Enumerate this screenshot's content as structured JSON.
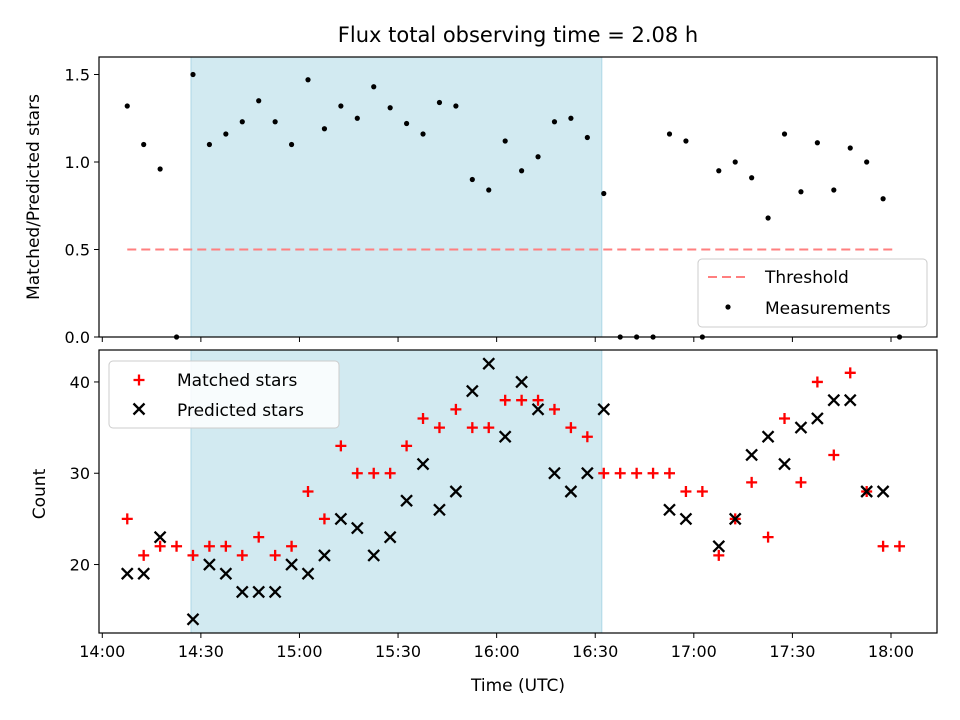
{
  "chart_data": [
    {
      "type": "scatter",
      "panel": "top",
      "title": "Flux total observing time = 2.08 h",
      "ylabel": "Matched/Predicted stars",
      "xlabel": "",
      "xlim": [
        -5,
        1270
      ],
      "ylim": [
        0,
        1.6
      ],
      "yticks": [
        0.0,
        0.5,
        1.0,
        1.5
      ],
      "ytick_labels": [
        "0.0",
        "0.5",
        "1.0",
        "1.5"
      ],
      "xticks": [
        0,
        150,
        300,
        450,
        600,
        750,
        900,
        1050,
        1200
      ],
      "shaded_region": {
        "start": 135,
        "end": 760,
        "color": "#add8e6"
      },
      "legend": {
        "location": "bottom-right",
        "entries": [
          "Threshold",
          "Measurements"
        ]
      },
      "series": [
        {
          "name": "Threshold",
          "style": "dashed-line",
          "color": "#ff7f7f",
          "x": [
            38,
            1202
          ],
          "y": [
            0.5,
            0.5
          ]
        },
        {
          "name": "Measurements",
          "style": "dot",
          "color": "#000000",
          "x": [
            38,
            63,
            88,
            113,
            138,
            163,
            188,
            213,
            238,
            263,
            288,
            313,
            338,
            363,
            388,
            413,
            438,
            463,
            488,
            513,
            538,
            563,
            588,
            613,
            638,
            663,
            688,
            713,
            738,
            763,
            788,
            813,
            838,
            863,
            888,
            913,
            938,
            963,
            988,
            1013,
            1038,
            1063,
            1088,
            1113,
            1138,
            1163,
            1188,
            1213
          ],
          "y": [
            1.32,
            1.1,
            0.96,
            0.0,
            1.5,
            1.1,
            1.16,
            1.23,
            1.35,
            1.23,
            1.1,
            1.47,
            1.19,
            1.32,
            1.25,
            1.43,
            1.31,
            1.22,
            1.16,
            1.34,
            1.32,
            0.9,
            0.84,
            1.12,
            0.95,
            1.03,
            1.23,
            1.25,
            1.14,
            0.82,
            0.0,
            0.0,
            0.0,
            1.16,
            1.12,
            0.0,
            0.95,
            1.0,
            0.91,
            0.68,
            1.16,
            0.83,
            1.11,
            0.84,
            1.08,
            1.0,
            0.79,
            0.0
          ]
        }
      ]
    },
    {
      "type": "scatter",
      "panel": "bottom",
      "title": "",
      "ylabel": "Count",
      "xlabel": "Time (UTC)",
      "xlim": [
        -5,
        1270
      ],
      "ylim": [
        12.5,
        43.5
      ],
      "yticks": [
        20,
        30,
        40
      ],
      "ytick_labels": [
        "20",
        "30",
        "40"
      ],
      "xticks": [
        0,
        150,
        300,
        450,
        600,
        750,
        900,
        1050,
        1200
      ],
      "xtick_labels": [
        "14:00",
        "14:30",
        "15:00",
        "15:30",
        "16:00",
        "16:30",
        "17:00",
        "17:30",
        "18:00"
      ],
      "shaded_region": {
        "start": 135,
        "end": 760,
        "color": "#add8e6"
      },
      "legend": {
        "location": "top-left",
        "entries": [
          "Matched stars",
          "Predicted stars"
        ]
      },
      "series": [
        {
          "name": "Matched stars",
          "marker": "plus",
          "color": "#ff0000",
          "x": [
            38,
            63,
            88,
            113,
            138,
            163,
            188,
            213,
            238,
            263,
            288,
            313,
            338,
            363,
            388,
            413,
            438,
            463,
            488,
            513,
            538,
            563,
            588,
            613,
            638,
            663,
            688,
            713,
            738,
            763,
            788,
            813,
            838,
            863,
            888,
            913,
            938,
            963,
            988,
            1013,
            1038,
            1063,
            1088,
            1113,
            1138,
            1163,
            1188,
            1213
          ],
          "y": [
            25,
            21,
            22,
            22,
            21,
            22,
            22,
            21,
            23,
            21,
            22,
            28,
            25,
            33,
            30,
            30,
            30,
            33,
            36,
            35,
            37,
            35,
            35,
            38,
            38,
            38,
            37,
            35,
            34,
            30,
            30,
            30,
            30,
            30,
            28,
            28,
            21,
            25,
            29,
            23,
            36,
            29,
            40,
            32,
            41,
            28,
            22,
            22
          ]
        },
        {
          "name": "Predicted stars",
          "marker": "x",
          "color": "#000000",
          "x": [
            38,
            63,
            88,
            138,
            163,
            188,
            213,
            238,
            263,
            288,
            313,
            338,
            363,
            388,
            413,
            438,
            463,
            488,
            513,
            538,
            563,
            588,
            613,
            638,
            663,
            688,
            713,
            738,
            763,
            863,
            888,
            938,
            963,
            988,
            1013,
            1038,
            1063,
            1088,
            1113,
            1138,
            1163,
            1188
          ],
          "y": [
            19,
            19,
            23,
            14,
            20,
            19,
            17,
            17,
            17,
            20,
            19,
            21,
            25,
            24,
            21,
            23,
            27,
            31,
            26,
            28,
            39,
            42,
            34,
            40,
            37,
            30,
            28,
            30,
            37,
            26,
            25,
            22,
            25,
            32,
            34,
            31,
            35,
            36,
            38,
            38,
            28,
            28
          ]
        }
      ]
    }
  ]
}
